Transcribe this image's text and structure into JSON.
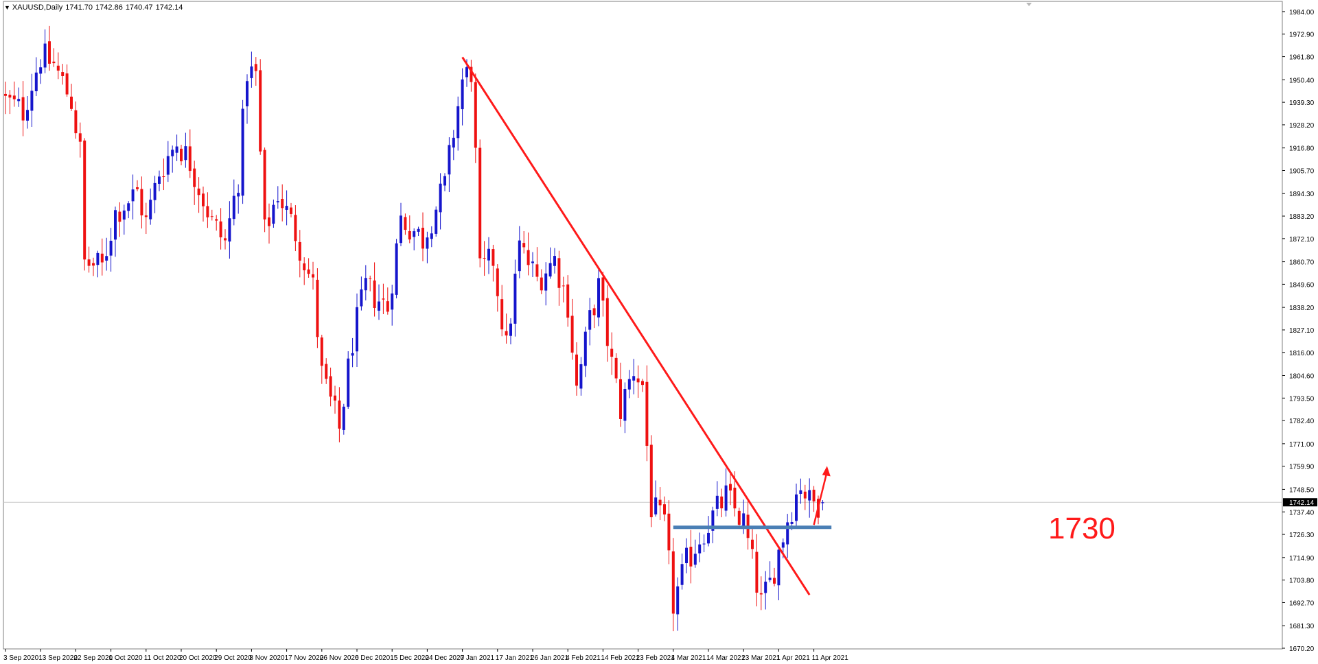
{
  "header": {
    "symbol": "XAUUSD,Daily",
    "open": "1741.70",
    "high": "1742.86",
    "low": "1740.47",
    "close": "1742.14"
  },
  "price_tag": "1742.14",
  "annotation_label": "1730",
  "colors": {
    "bull": "#1515cc",
    "bear": "#ee1111",
    "trendline": "#ff1a1a",
    "support": "#4a7fb5",
    "grid": "#c0c0c0",
    "axis_text": "#000000"
  },
  "chart_data": {
    "type": "candlestick",
    "title": "XAUUSD,Daily",
    "ylim": [
      1670.2,
      1986.0
    ],
    "y_ticks": [
      "1984.00",
      "1972.90",
      "1961.80",
      "1950.40",
      "1939.30",
      "1928.20",
      "1916.80",
      "1905.70",
      "1894.30",
      "1883.20",
      "1872.10",
      "1860.70",
      "1849.60",
      "1838.20",
      "1827.10",
      "1816.00",
      "1804.60",
      "1793.50",
      "1782.40",
      "1771.00",
      "1759.90",
      "1748.50",
      "1737.40",
      "1726.30",
      "1714.90",
      "1703.80",
      "1692.70",
      "1681.30",
      "1670.20"
    ],
    "x_ticks": [
      {
        "i": 0,
        "label": "3 Sep 2020"
      },
      {
        "i": 8,
        "label": "13 Sep 2020"
      },
      {
        "i": 16,
        "label": "22 Sep 2020"
      },
      {
        "i": 24,
        "label": "1 Oct 2020"
      },
      {
        "i": 32,
        "label": "11 Oct 2020"
      },
      {
        "i": 40,
        "label": "20 Oct 2020"
      },
      {
        "i": 48,
        "label": "29 Oct 2020"
      },
      {
        "i": 56,
        "label": "8 Nov 2020"
      },
      {
        "i": 64,
        "label": "17 Nov 2020"
      },
      {
        "i": 72,
        "label": "26 Nov 2020"
      },
      {
        "i": 80,
        "label": "6 Dec 2020"
      },
      {
        "i": 88,
        "label": "15 Dec 2020"
      },
      {
        "i": 96,
        "label": "24 Dec 2020"
      },
      {
        "i": 104,
        "label": "7 Jan 2021"
      },
      {
        "i": 112,
        "label": "17 Jan 2021"
      },
      {
        "i": 120,
        "label": "26 Jan 2021"
      },
      {
        "i": 128,
        "label": "4 Feb 2021"
      },
      {
        "i": 136,
        "label": "14 Feb 2021"
      },
      {
        "i": 144,
        "label": "23 Feb 2021"
      },
      {
        "i": 152,
        "label": "4 Mar 2021"
      },
      {
        "i": 160,
        "label": "14 Mar 2021"
      },
      {
        "i": 168,
        "label": "23 Mar 2021"
      },
      {
        "i": 176,
        "label": "1 Apr 2021"
      },
      {
        "i": 184,
        "label": "11 Apr 2021"
      }
    ],
    "bars_count": 187,
    "anchors": [
      [
        0,
        1940
      ],
      [
        4,
        1935
      ],
      [
        8,
        1962
      ],
      [
        11,
        1958
      ],
      [
        15,
        1940
      ],
      [
        17,
        1915
      ],
      [
        18,
        1860
      ],
      [
        22,
        1858
      ],
      [
        25,
        1885
      ],
      [
        30,
        1895
      ],
      [
        32,
        1880
      ],
      [
        35,
        1905
      ],
      [
        39,
        1920
      ],
      [
        42,
        1910
      ],
      [
        47,
        1880
      ],
      [
        50,
        1870
      ],
      [
        53,
        1902
      ],
      [
        55,
        1955
      ],
      [
        57,
        1952
      ],
      [
        59,
        1875
      ],
      [
        62,
        1895
      ],
      [
        66,
        1875
      ],
      [
        70,
        1848
      ],
      [
        72,
        1805
      ],
      [
        76,
        1778
      ],
      [
        79,
        1822
      ],
      [
        82,
        1848
      ],
      [
        87,
        1838
      ],
      [
        90,
        1882
      ],
      [
        95,
        1872
      ],
      [
        100,
        1898
      ],
      [
        102,
        1925
      ],
      [
        104,
        1950
      ],
      [
        106,
        1955
      ],
      [
        107,
        1912
      ],
      [
        108,
        1855
      ],
      [
        111,
        1862
      ],
      [
        114,
        1818
      ],
      [
        117,
        1868
      ],
      [
        121,
        1852
      ],
      [
        125,
        1862
      ],
      [
        128,
        1840
      ],
      [
        130,
        1798
      ],
      [
        133,
        1832
      ],
      [
        135,
        1848
      ],
      [
        138,
        1810
      ],
      [
        140,
        1788
      ],
      [
        143,
        1808
      ],
      [
        145,
        1800
      ],
      [
        147,
        1740
      ],
      [
        150,
        1730
      ],
      [
        152,
        1692
      ],
      [
        155,
        1712
      ],
      [
        158,
        1725
      ],
      [
        161,
        1735
      ],
      [
        164,
        1745
      ],
      [
        168,
        1732
      ],
      [
        172,
        1692
      ],
      [
        174,
        1702
      ],
      [
        178,
        1734
      ],
      [
        181,
        1752
      ],
      [
        183,
        1742
      ],
      [
        186,
        1742
      ]
    ],
    "trendline": {
      "from": {
        "i": 104,
        "price": 1961.5
      },
      "to": {
        "i": 183,
        "price": 1696.5
      }
    },
    "support_level": {
      "price": 1729.8,
      "from_i": 152,
      "to_i": 188
    },
    "last_price": 1742.14,
    "projection_arrow": {
      "from": {
        "i": 184,
        "price": 1731
      },
      "to": {
        "i": 187,
        "price": 1760
      }
    }
  }
}
